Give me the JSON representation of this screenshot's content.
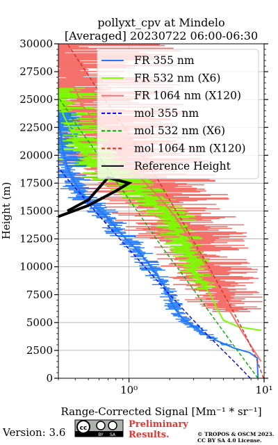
{
  "chart_data": {
    "type": "line",
    "title": "pollyxt_cpv at Mindelo",
    "subtitle": "[Averaged] 20230722 06:00-06:30",
    "xlabel": "Range-Corrected Signal [Mm⁻¹ * sr⁻¹]",
    "ylabel": "Height (m)",
    "x_scale": "log",
    "xlim": [
      0.3,
      10
    ],
    "ylim": [
      0,
      30000
    ],
    "x_ticks": [
      1,
      10
    ],
    "x_tick_labels": [
      "10⁰",
      "10¹"
    ],
    "y_ticks": [
      0,
      2500,
      5000,
      7500,
      10000,
      12500,
      15000,
      17500,
      20000,
      22500,
      25000,
      27500,
      30000
    ],
    "grid": true,
    "legend_position": "top-right",
    "series": [
      {
        "name": "FR 355 nm",
        "color": "#1f77ff",
        "style": "solid",
        "points": [
          [
            9.0,
            0
          ],
          [
            8.9,
            1800
          ],
          [
            7.8,
            2300
          ],
          [
            6.0,
            2700
          ],
          [
            4.6,
            3300
          ],
          [
            3.6,
            4000
          ],
          [
            3.0,
            4700
          ],
          [
            2.5,
            5300
          ],
          [
            2.2,
            6200
          ],
          [
            2.0,
            7200
          ],
          [
            1.8,
            8400
          ],
          [
            1.55,
            9500
          ],
          [
            1.35,
            10500
          ],
          [
            1.15,
            11500
          ],
          [
            0.95,
            12500
          ],
          [
            0.8,
            13500
          ],
          [
            0.68,
            14500
          ],
          [
            0.55,
            15500
          ],
          [
            0.45,
            16500
          ],
          [
            0.4,
            17500
          ],
          [
            0.36,
            18500
          ],
          [
            0.33,
            20000
          ],
          [
            0.31,
            22000
          ],
          [
            0.3,
            24000
          ]
        ]
      },
      {
        "name": "FR 532 nm (X6)",
        "color": "#7cfc00",
        "style": "solid",
        "points": [
          [
            9.5,
            4300
          ],
          [
            6.5,
            4600
          ],
          [
            5.0,
            5200
          ],
          [
            4.5,
            6200
          ],
          [
            4.0,
            7500
          ],
          [
            3.4,
            8700
          ],
          [
            3.0,
            9800
          ],
          [
            2.8,
            11000
          ],
          [
            2.5,
            12300
          ],
          [
            2.2,
            13500
          ],
          [
            2.0,
            14500
          ],
          [
            1.7,
            15300
          ],
          [
            1.4,
            16000
          ],
          [
            1.2,
            16700
          ],
          [
            1.05,
            17300
          ],
          [
            0.8,
            18000
          ],
          [
            0.6,
            19000
          ],
          [
            0.45,
            20500
          ],
          [
            0.38,
            22000
          ],
          [
            0.33,
            23500
          ],
          [
            0.3,
            25000
          ]
        ]
      },
      {
        "name": "FR 1064 nm (X120)",
        "color": "#f4716b",
        "style": "solid",
        "points": [
          [
            9.5,
            1500
          ],
          [
            7.0,
            4000
          ],
          [
            5.0,
            7000
          ],
          [
            4.0,
            9500
          ],
          [
            3.0,
            12000
          ],
          [
            2.2,
            14500
          ],
          [
            1.6,
            16500
          ],
          [
            1.1,
            18500
          ],
          [
            0.8,
            20500
          ],
          [
            0.6,
            22500
          ],
          [
            0.45,
            24500
          ],
          [
            0.38,
            26500
          ],
          [
            0.34,
            28500
          ],
          [
            0.32,
            30000
          ]
        ]
      },
      {
        "name": "mol 355 nm",
        "color": "#0000ee",
        "style": "dashed",
        "points": [
          [
            7.9,
            0
          ],
          [
            6.0,
            1500
          ],
          [
            4.5,
            3000
          ],
          [
            3.4,
            4500
          ],
          [
            2.6,
            6000
          ],
          [
            2.0,
            7500
          ],
          [
            1.55,
            9000
          ],
          [
            1.2,
            10500
          ],
          [
            0.93,
            12000
          ],
          [
            0.72,
            13500
          ],
          [
            0.56,
            15000
          ],
          [
            0.44,
            16500
          ],
          [
            0.36,
            17700
          ],
          [
            0.3,
            18900
          ]
        ]
      },
      {
        "name": "mol 532 nm (X6)",
        "color": "#00aa00",
        "style": "dashed",
        "points": [
          [
            9.0,
            0
          ],
          [
            7.3,
            1500
          ],
          [
            5.9,
            3000
          ],
          [
            4.8,
            4500
          ],
          [
            3.9,
            6000
          ],
          [
            3.2,
            7500
          ],
          [
            2.6,
            9000
          ],
          [
            2.1,
            10500
          ],
          [
            1.7,
            12000
          ],
          [
            1.4,
            13500
          ],
          [
            1.15,
            15000
          ],
          [
            0.94,
            16500
          ],
          [
            0.77,
            18000
          ],
          [
            0.63,
            19500
          ],
          [
            0.52,
            21000
          ],
          [
            0.42,
            22500
          ],
          [
            0.35,
            24000
          ],
          [
            0.3,
            25200
          ]
        ]
      },
      {
        "name": "mol 1064 nm (X120)",
        "color": "#d62728",
        "style": "dashed",
        "points": [
          [
            9.9,
            0
          ],
          [
            8.6,
            2000
          ],
          [
            7.2,
            4000
          ],
          [
            5.9,
            6000
          ],
          [
            4.8,
            8000
          ],
          [
            3.9,
            10000
          ],
          [
            3.1,
            12000
          ],
          [
            2.5,
            14000
          ],
          [
            2.0,
            16000
          ],
          [
            1.6,
            18000
          ],
          [
            1.25,
            20000
          ],
          [
            0.98,
            22000
          ],
          [
            0.76,
            24000
          ],
          [
            0.58,
            26000
          ],
          [
            0.45,
            28000
          ],
          [
            0.35,
            30000
          ]
        ]
      },
      {
        "name": "Reference Height",
        "color": "#000000",
        "style": "solid",
        "points": [
          [
            0.3,
            14500
          ],
          [
            0.5,
            15500
          ],
          [
            0.8,
            16800
          ],
          [
            1.0,
            17500
          ],
          [
            0.7,
            18000
          ],
          [
            0.5,
            16000
          ],
          [
            0.35,
            15000
          ]
        ]
      }
    ]
  },
  "footer": {
    "version": "Version: 3.6",
    "license_badge": [
      "cc",
      "BY",
      "SA"
    ],
    "preliminary_line1": "Preliminary",
    "preliminary_line2": "Results.",
    "copyright_line1": "© TROPOS & OSCM 2023.",
    "copyright_line2": "CC BY SA 4.0 License."
  }
}
